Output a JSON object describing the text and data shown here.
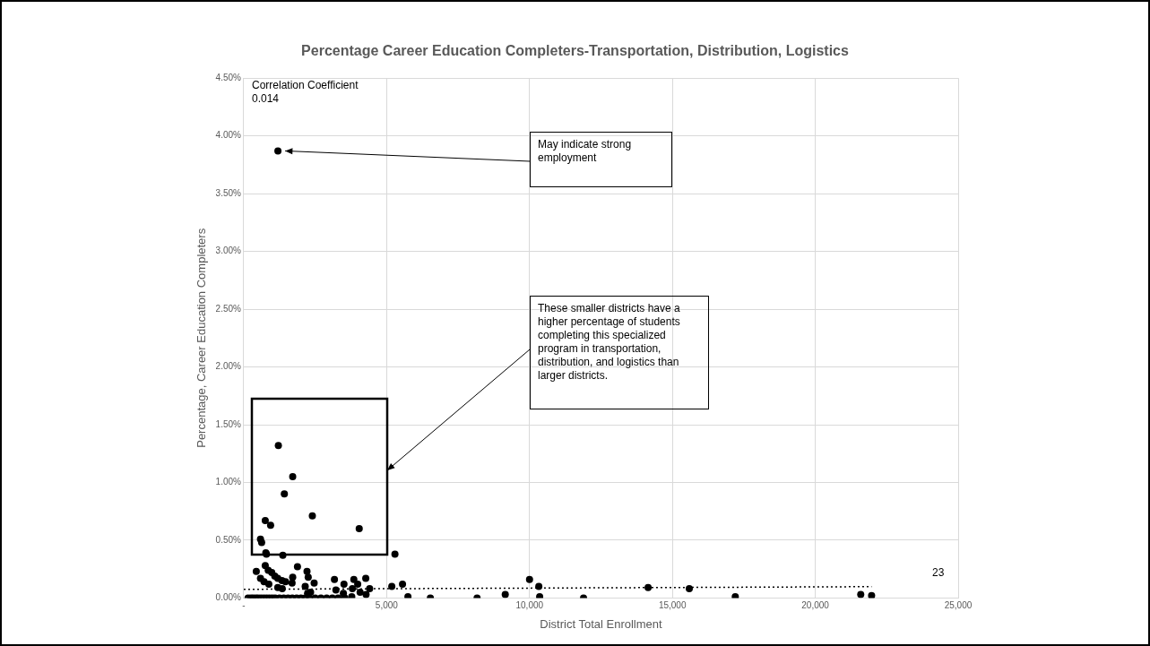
{
  "chart_data": {
    "type": "scatter",
    "title": "Percentage Career Education Completers-Transportation, Distribution, Logistics",
    "xlabel": "District Total Enrollment",
    "ylabel": "Percentage, Career Education Completers",
    "xlim": [
      0,
      25000
    ],
    "ylim": [
      0,
      4.5
    ],
    "xticks": [
      {
        "value": 0,
        "label": "-"
      },
      {
        "value": 5000,
        "label": "5,000"
      },
      {
        "value": 10000,
        "label": "10,000"
      },
      {
        "value": 15000,
        "label": "15,000"
      },
      {
        "value": 20000,
        "label": "20,000"
      },
      {
        "value": 25000,
        "label": "25,000"
      }
    ],
    "yticks": [
      {
        "value": 0,
        "label": "0.00%"
      },
      {
        "value": 0.5,
        "label": "0.50%"
      },
      {
        "value": 1,
        "label": "1.00%"
      },
      {
        "value": 1.5,
        "label": "1.50%"
      },
      {
        "value": 2,
        "label": "2.00%"
      },
      {
        "value": 2.5,
        "label": "2.50%"
      },
      {
        "value": 3,
        "label": "3.00%"
      },
      {
        "value": 3.5,
        "label": "3.50%"
      },
      {
        "value": 4,
        "label": "4.00%"
      },
      {
        "value": 4.5,
        "label": "4.50%"
      }
    ],
    "grid": true,
    "marker": "circle",
    "series": [
      {
        "color": "#000000",
        "x": [
          1195,
          1211,
          1712,
          1420,
          2400,
          752,
          939,
          4040,
          585,
          626,
          772,
          793,
          1367,
          1879,
          752,
          2213,
          438,
          856,
          981,
          1086,
          1190,
          1712,
          2255,
          1336,
          1461,
          585,
          710,
          877,
          1691,
          2463,
          3173,
          3852,
          4269,
          3507,
          3987,
          1190,
          1347,
          2150,
          3800,
          4071,
          4280,
          4405,
          3225,
          3486,
          2338,
          2234,
          3779,
          3539,
          5290,
          5180,
          5555,
          5745,
          6530,
          8165,
          9150,
          10000,
          10325,
          10355,
          11890,
          14150,
          15590,
          17200,
          21590,
          21970,
          150,
          250,
          330,
          420,
          500,
          600,
          700,
          800,
          900,
          1000,
          1100,
          1250,
          1400,
          1550,
          1700,
          1850,
          2000,
          2150,
          2300,
          2500,
          2700,
          2900,
          3100,
          3300
        ],
        "values": [
          3.87,
          1.32,
          1.05,
          0.9,
          0.71,
          0.67,
          0.63,
          0.6,
          0.51,
          0.48,
          0.39,
          0.38,
          0.37,
          0.27,
          0.28,
          0.23,
          0.23,
          0.24,
          0.22,
          0.19,
          0.17,
          0.18,
          0.18,
          0.15,
          0.14,
          0.17,
          0.14,
          0.12,
          0.13,
          0.13,
          0.16,
          0.16,
          0.17,
          0.12,
          0.12,
          0.09,
          0.08,
          0.1,
          0.08,
          0.05,
          0.03,
          0.08,
          0.07,
          0.04,
          0.05,
          0.04,
          0.01,
          0,
          0.38,
          0.1,
          0.12,
          0.01,
          0,
          0,
          0.03,
          0.16,
          0.1,
          0.01,
          0,
          0.09,
          0.08,
          0.01,
          0.03,
          0.02,
          0,
          0,
          0,
          0,
          0,
          0,
          0,
          0,
          0,
          0,
          0,
          0,
          0,
          0,
          0,
          0,
          0,
          0,
          0,
          0,
          0,
          0,
          0,
          0
        ]
      },
      {
        "type": "line",
        "line_style": "dotted",
        "marker": "none",
        "color": "#000000",
        "x": [
          0,
          21970
        ],
        "values": [
          0.075,
          0.098
        ]
      }
    ],
    "annotations": [
      {
        "text": "May indicate strong employment",
        "x": 1195,
        "y": 3.87
      },
      "These smaller districts have a higher percentage of students completing this specialized program in transportation, distribution, and logistics than larger districts.",
      "Correlation Coefficient 0.014",
      "23"
    ]
  }
}
